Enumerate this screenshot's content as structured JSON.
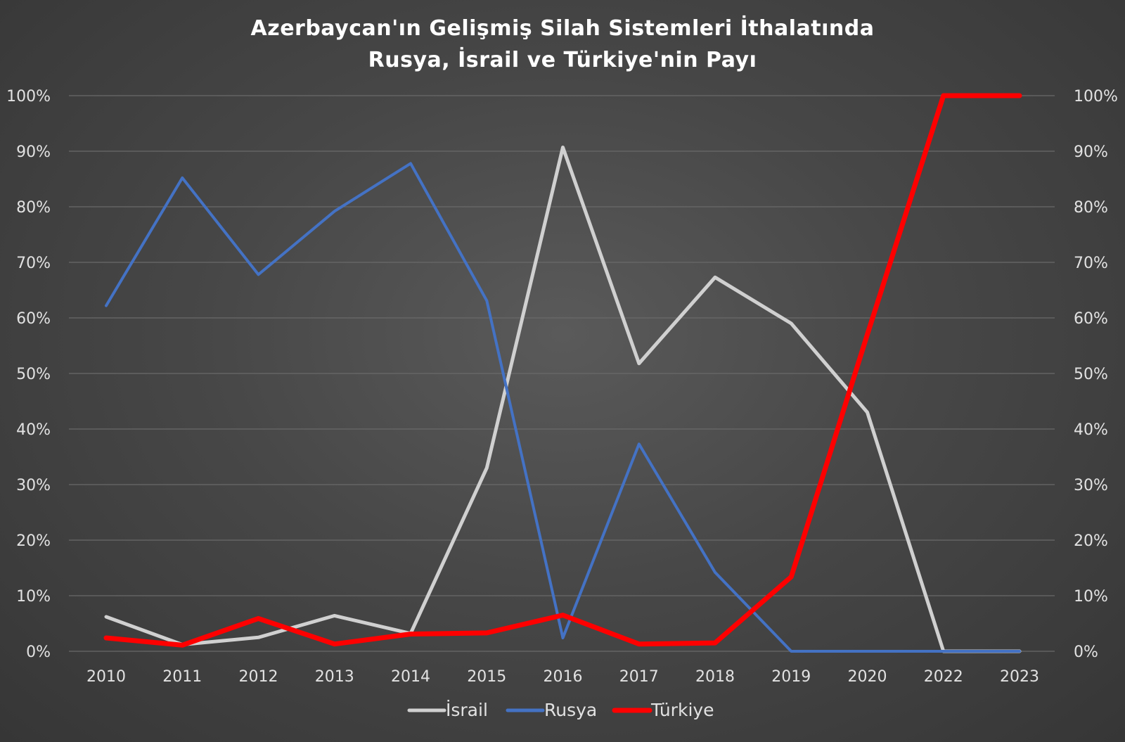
{
  "chart_data": {
    "type": "line",
    "title_lines": [
      "Azerbaycan'ın Gelişmiş Silah Sistemleri İthalatında",
      "Rusya, İsrail ve Türkiye'nin Payı"
    ],
    "categories": [
      "2010",
      "2011",
      "2012",
      "2013",
      "2014",
      "2015",
      "2016",
      "2017",
      "2018",
      "2019",
      "2020",
      "2022",
      "2023"
    ],
    "y_tick_labels": [
      "0%",
      "10%",
      "20%",
      "30%",
      "40%",
      "50%",
      "60%",
      "70%",
      "80%",
      "90%",
      "100%"
    ],
    "ylim": [
      0,
      100
    ],
    "secondary_y_axis": true,
    "grid": true,
    "legend_position": "bottom",
    "series": [
      {
        "name": "İsrail",
        "color": "#d0d0d0",
        "values": [
          6.2,
          1.2,
          2.5,
          6.4,
          3.2,
          33,
          90.7,
          51.8,
          67.3,
          59,
          43,
          0,
          0
        ]
      },
      {
        "name": "Rusya",
        "color": "#4472c4",
        "values": [
          62.2,
          85.2,
          67.8,
          79.2,
          87.8,
          63.1,
          2.4,
          37.3,
          14.2,
          0,
          0,
          0,
          0
        ]
      },
      {
        "name": "Türkiye",
        "color": "#ff0000",
        "values": [
          2.4,
          1.1,
          5.9,
          1.3,
          3.1,
          3.3,
          6.5,
          1.3,
          1.5,
          13.4,
          57,
          100,
          100
        ]
      }
    ]
  }
}
